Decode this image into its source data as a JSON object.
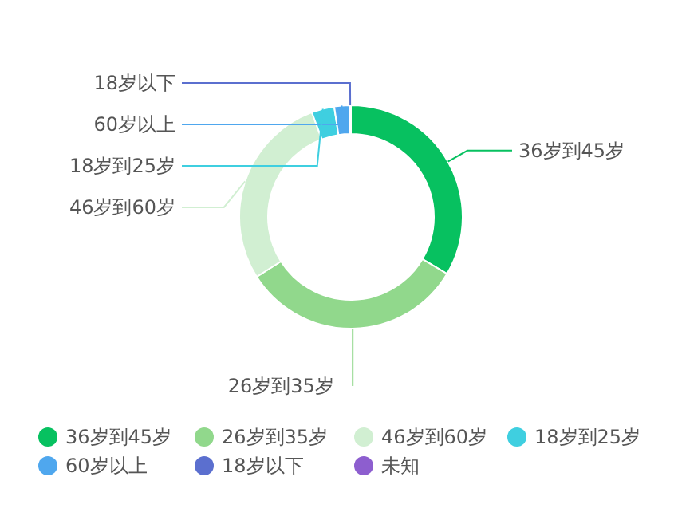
{
  "chart_data": {
    "type": "donut",
    "categories": [
      "36岁到45岁",
      "26岁到35岁",
      "46岁到60岁",
      "18岁到25岁",
      "60岁以上",
      "18岁以下",
      "未知"
    ],
    "values": [
      33.5,
      32.5,
      28.3,
      3.3,
      2.2,
      0.2,
      0
    ],
    "colors": [
      "#07c160",
      "#91d88c",
      "#d1efd2",
      "#3fcfe0",
      "#4fa7ee",
      "#5b6fcf",
      "#8d5ecf"
    ],
    "legend": "bottom"
  }
}
